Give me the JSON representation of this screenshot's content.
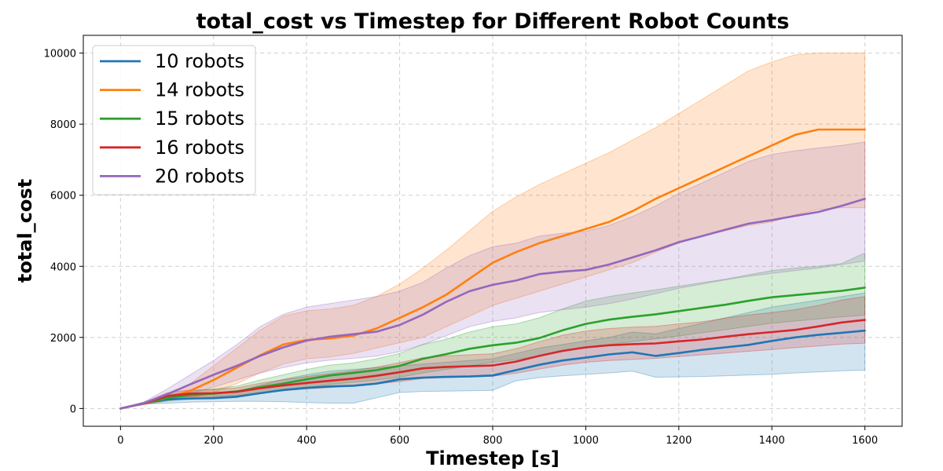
{
  "chart_data": {
    "type": "line",
    "title": "total_cost vs Timestep for Different Robot Counts",
    "xlabel": "Timestep [s]",
    "ylabel": "total_cost",
    "xlim": [
      -80,
      1680
    ],
    "ylim": [
      -500,
      10500
    ],
    "xticks": [
      0,
      200,
      400,
      600,
      800,
      1000,
      1200,
      1400,
      1600
    ],
    "yticks": [
      0,
      2000,
      4000,
      6000,
      8000,
      10000
    ],
    "grid": true,
    "legend_position": "upper-left",
    "x": [
      0,
      50,
      100,
      150,
      200,
      250,
      300,
      350,
      400,
      450,
      500,
      550,
      600,
      650,
      700,
      750,
      800,
      850,
      900,
      950,
      1000,
      1050,
      1100,
      1150,
      1200,
      1250,
      1300,
      1350,
      1400,
      1450,
      1500,
      1550,
      1600
    ],
    "series": [
      {
        "name": "10 robots",
        "color": "#1f77b4",
        "values": [
          0,
          150,
          250,
          280,
          290,
          330,
          430,
          520,
          580,
          620,
          640,
          700,
          820,
          870,
          890,
          900,
          930,
          1080,
          1230,
          1350,
          1430,
          1520,
          1580,
          1480,
          1560,
          1650,
          1720,
          1790,
          1900,
          2000,
          2070,
          2130,
          2190
        ],
        "lower": [
          0,
          120,
          150,
          180,
          190,
          200,
          200,
          190,
          170,
          150,
          150,
          300,
          450,
          480,
          490,
          500,
          510,
          780,
          870,
          920,
          960,
          1000,
          1050,
          880,
          890,
          900,
          920,
          940,
          960,
          1000,
          1030,
          1060,
          1080
        ],
        "upper": [
          0,
          170,
          330,
          380,
          400,
          480,
          650,
          820,
          950,
          1050,
          1100,
          1150,
          1200,
          1250,
          1300,
          1350,
          1400,
          1550,
          1700,
          1800,
          1900,
          2000,
          2150,
          2100,
          2250,
          2400,
          2550,
          2700,
          2850,
          2950,
          3050,
          3150,
          3250
        ]
      },
      {
        "name": "14 robots",
        "color": "#ff7f0e",
        "values": [
          0,
          140,
          300,
          500,
          800,
          1150,
          1500,
          1800,
          1930,
          1970,
          2050,
          2250,
          2550,
          2850,
          3200,
          3650,
          4100,
          4400,
          4650,
          4850,
          5050,
          5250,
          5550,
          5900,
          6200,
          6500,
          6800,
          7100,
          7400,
          7700,
          7850,
          7850,
          7850
        ],
        "lower": [
          0,
          110,
          200,
          300,
          450,
          700,
          1000,
          1250,
          1400,
          1450,
          1550,
          1700,
          1850,
          2000,
          2300,
          2600,
          2900,
          3100,
          3300,
          3500,
          3700,
          3900,
          4100,
          4400,
          4650,
          4850,
          5000,
          5150,
          5250,
          5450,
          5600,
          5650,
          5650
        ],
        "upper": [
          0,
          170,
          400,
          700,
          1200,
          1700,
          2200,
          2600,
          2750,
          2800,
          2900,
          3150,
          3500,
          3950,
          4450,
          5000,
          5550,
          5950,
          6300,
          6600,
          6900,
          7200,
          7550,
          7900,
          8300,
          8700,
          9100,
          9500,
          9750,
          9950,
          10000,
          10000,
          10000
        ]
      },
      {
        "name": "15 robots",
        "color": "#2ca02c",
        "values": [
          0,
          150,
          300,
          380,
          420,
          480,
          600,
          700,
          820,
          930,
          1000,
          1080,
          1200,
          1400,
          1530,
          1680,
          1780,
          1850,
          1980,
          2200,
          2380,
          2500,
          2580,
          2650,
          2740,
          2830,
          2920,
          3030,
          3130,
          3190,
          3250,
          3310,
          3400
        ],
        "lower": [
          0,
          120,
          220,
          280,
          310,
          350,
          430,
          500,
          590,
          680,
          740,
          800,
          880,
          1000,
          1100,
          1200,
          1300,
          1380,
          1480,
          1600,
          1720,
          1800,
          1880,
          1960,
          2040,
          2130,
          2220,
          2310,
          2400,
          2460,
          2520,
          2580,
          2630
        ],
        "upper": [
          0,
          180,
          380,
          480,
          550,
          630,
          800,
          950,
          1100,
          1220,
          1280,
          1400,
          1550,
          1800,
          1950,
          2150,
          2300,
          2380,
          2550,
          2800,
          3020,
          3150,
          3250,
          3340,
          3440,
          3540,
          3640,
          3760,
          3880,
          3950,
          4000,
          4080,
          4380
        ]
      },
      {
        "name": "16 robots",
        "color": "#d62728",
        "values": [
          0,
          140,
          350,
          420,
          430,
          470,
          570,
          650,
          720,
          780,
          840,
          920,
          1020,
          1130,
          1170,
          1190,
          1210,
          1320,
          1480,
          1620,
          1720,
          1780,
          1810,
          1830,
          1890,
          1940,
          2020,
          2090,
          2150,
          2210,
          2310,
          2420,
          2490
        ],
        "lower": [
          0,
          110,
          270,
          330,
          340,
          370,
          440,
          500,
          550,
          590,
          630,
          690,
          760,
          840,
          870,
          890,
          910,
          990,
          1110,
          1220,
          1300,
          1350,
          1380,
          1410,
          1460,
          1510,
          1560,
          1610,
          1660,
          1710,
          1760,
          1810,
          1840
        ],
        "upper": [
          0,
          170,
          440,
          520,
          530,
          580,
          710,
          810,
          900,
          980,
          1060,
          1160,
          1290,
          1430,
          1480,
          1510,
          1540,
          1680,
          1880,
          2060,
          2180,
          2250,
          2290,
          2310,
          2380,
          2440,
          2540,
          2630,
          2700,
          2780,
          2900,
          3050,
          3150
        ]
      },
      {
        "name": "20 robots",
        "color": "#9467bd",
        "values": [
          0,
          150,
          400,
          680,
          950,
          1200,
          1480,
          1720,
          1910,
          2020,
          2090,
          2160,
          2350,
          2640,
          3000,
          3300,
          3480,
          3600,
          3780,
          3850,
          3900,
          4050,
          4250,
          4450,
          4680,
          4850,
          5030,
          5200,
          5300,
          5420,
          5530,
          5700,
          5900
        ],
        "lower": [
          0,
          120,
          250,
          420,
          600,
          800,
          1000,
          1150,
          1280,
          1360,
          1410,
          1470,
          1600,
          1800,
          2050,
          2300,
          2450,
          2550,
          2700,
          2780,
          2850,
          2950,
          3080,
          3230,
          3380,
          3500,
          3620,
          3720,
          3800,
          3880,
          3950,
          4050,
          4150
        ],
        "upper": [
          0,
          180,
          550,
          950,
          1350,
          1800,
          2300,
          2650,
          2850,
          2950,
          3050,
          3150,
          3300,
          3550,
          3950,
          4300,
          4550,
          4650,
          4850,
          4930,
          4980,
          5150,
          5400,
          5700,
          6050,
          6350,
          6650,
          6950,
          7150,
          7250,
          7330,
          7400,
          7500
        ]
      }
    ]
  }
}
